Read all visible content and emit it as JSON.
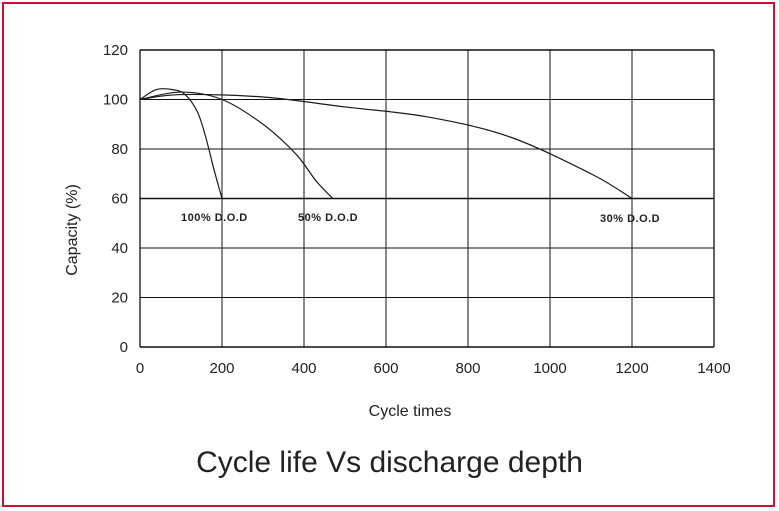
{
  "frame_color": "#c8102e",
  "caption": "Cycle life Vs discharge depth",
  "chart_data": {
    "type": "line",
    "title": "Cycle life Vs discharge depth",
    "xlabel": "Cycle times",
    "ylabel": "Capacity (%)",
    "xlim": [
      0,
      1400
    ],
    "ylim": [
      0,
      120
    ],
    "x_ticks": [
      0,
      200,
      400,
      600,
      800,
      1000,
      1200,
      1400
    ],
    "y_ticks": [
      0,
      20,
      40,
      60,
      80,
      100,
      120
    ],
    "grid": true,
    "series": [
      {
        "name": "100% D.O.D",
        "x": [
          0,
          40,
          80,
          110,
          140,
          160,
          180,
          200
        ],
        "y": [
          100,
          104,
          104,
          102,
          95,
          85,
          72,
          60
        ]
      },
      {
        "name": "50% D.O.D",
        "x": [
          0,
          100,
          200,
          300,
          380,
          430,
          470
        ],
        "y": [
          100,
          103,
          100,
          90,
          78,
          67,
          60
        ]
      },
      {
        "name": "30% D.O.D",
        "x": [
          0,
          100,
          300,
          500,
          700,
          900,
          1100,
          1200
        ],
        "y": [
          100,
          102,
          101,
          97,
          93,
          85,
          70,
          60
        ]
      }
    ],
    "annotations": [
      "100% D.O.D",
      "50% D.O.D",
      "30% D.O.D"
    ]
  }
}
